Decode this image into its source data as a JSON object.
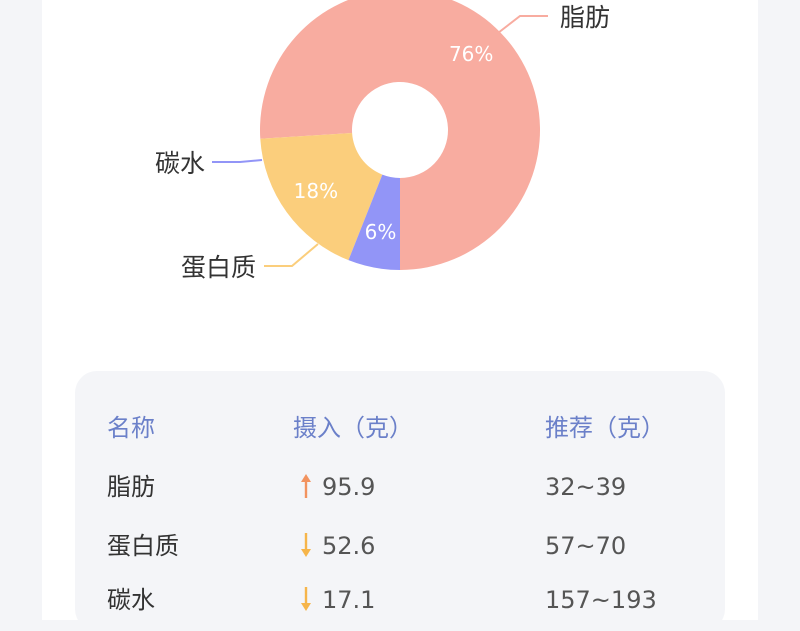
{
  "chart_data": {
    "type": "pie",
    "variant": "donut",
    "slices": [
      {
        "name": "脂肪",
        "value": 76,
        "label": "76%",
        "color": "#f8aca0"
      },
      {
        "name": "蛋白质",
        "value": 18,
        "label": "18%",
        "color": "#fbce7c"
      },
      {
        "name": "碳水",
        "value": 6,
        "label": "6%",
        "color": "#9295f7"
      }
    ],
    "legend": "leader-line labels"
  },
  "table": {
    "headers": [
      "名称",
      "摄入（克）",
      "推荐（克）"
    ],
    "rows": [
      {
        "name": "脂肪",
        "intake": "95.9",
        "trend": "up",
        "recommended": "32~39"
      },
      {
        "name": "蛋白质",
        "intake": "52.6",
        "trend": "down",
        "recommended": "57~70"
      },
      {
        "name": "碳水",
        "intake": "17.1",
        "trend": "down",
        "recommended": "157~193"
      }
    ],
    "colors": {
      "header": "#6b80c9",
      "up_arrow": "#f2935f",
      "down_arrow": "#f6b54a"
    }
  }
}
